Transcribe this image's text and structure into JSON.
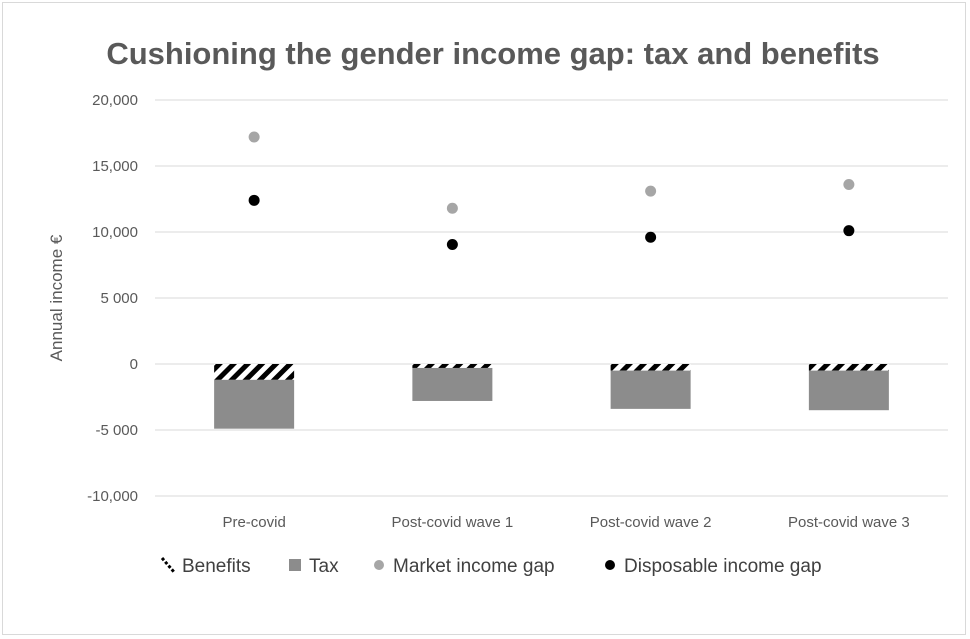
{
  "chart_data": {
    "type": "bar",
    "title": "Cushioning the gender income gap: tax and benefits",
    "ylabel": "Annual income €",
    "xlabel": "",
    "ylim": [
      -10000,
      20000
    ],
    "yticks": [
      20000,
      15000,
      10000,
      5000,
      0,
      -5000,
      -10000
    ],
    "ytick_labels": [
      "20,000",
      "15,000",
      "10,000",
      "5 000",
      "0",
      "-5 000",
      "-10,000"
    ],
    "categories": [
      "Pre-covid",
      "Post-covid wave 1",
      "Post-covid wave 2",
      "Post-covid wave 3"
    ],
    "grid": true,
    "legend_position": "bottom",
    "series": [
      {
        "name": "Benefits",
        "kind": "stacked-bar",
        "pattern": "diagonal-hatch",
        "values": [
          -1200,
          -300,
          -500,
          -500
        ]
      },
      {
        "name": "Tax",
        "kind": "stacked-bar",
        "color": "#8c8c8c",
        "values": [
          -3700,
          -2500,
          -2900,
          -3000
        ]
      },
      {
        "name": "Market income gap",
        "kind": "marker",
        "color": "#a6a6a6",
        "values": [
          17200,
          11800,
          13100,
          13600
        ]
      },
      {
        "name": "Disposable income gap",
        "kind": "marker",
        "color": "#000000",
        "values": [
          12400,
          9050,
          9600,
          10100
        ]
      }
    ]
  }
}
